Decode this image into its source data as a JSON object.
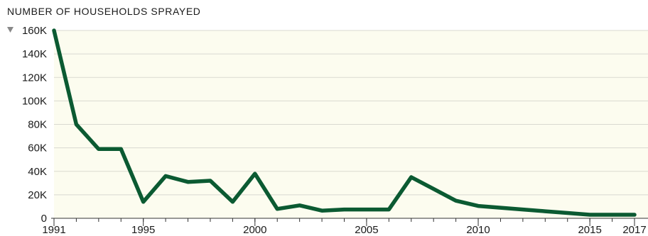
{
  "chart_data": {
    "type": "line",
    "title": "NUMBER OF HOUSEHOLDS SPRAYED",
    "xlabel": "",
    "ylabel": "",
    "x": [
      1991,
      1992,
      1993,
      1994,
      1995,
      1996,
      1997,
      1998,
      1999,
      2000,
      2001,
      2002,
      2003,
      2004,
      2005,
      2006,
      2007,
      2008,
      2009,
      2010,
      2011,
      2012,
      2013,
      2014,
      2015,
      2016,
      2017
    ],
    "series": [
      {
        "values": [
          160000,
          80000,
          59000,
          59000,
          14000,
          36000,
          31000,
          32000,
          14000,
          38000,
          8000,
          11000,
          6500,
          7500,
          7500,
          7500,
          35000,
          25000,
          15000,
          10500,
          9000,
          7500,
          6000,
          4500,
          3000,
          3000,
          3000
        ]
      }
    ],
    "xlim": [
      1991,
      2017
    ],
    "ylim": [
      0,
      160000
    ],
    "y_ticks": [
      0,
      20000,
      40000,
      60000,
      80000,
      100000,
      120000,
      140000,
      160000
    ],
    "y_tick_labels": [
      "0",
      "20K",
      "40K",
      "60K",
      "80K",
      "100K",
      "120K",
      "140K",
      "160K"
    ],
    "x_tick_values": [
      1991,
      1995,
      2000,
      2005,
      2010,
      2015,
      2017
    ],
    "x_tick_labels": [
      "1991",
      "1995",
      "2000",
      "2005",
      "2010",
      "2015",
      "2017"
    ],
    "grid": true,
    "legend": "none",
    "colors": {
      "line": "#0b5a32",
      "plot_background": "#fcfcef",
      "grid": "#d9d9d0",
      "axis": "#333333",
      "marker": "#888888"
    },
    "icon": "triangle-down-icon"
  }
}
